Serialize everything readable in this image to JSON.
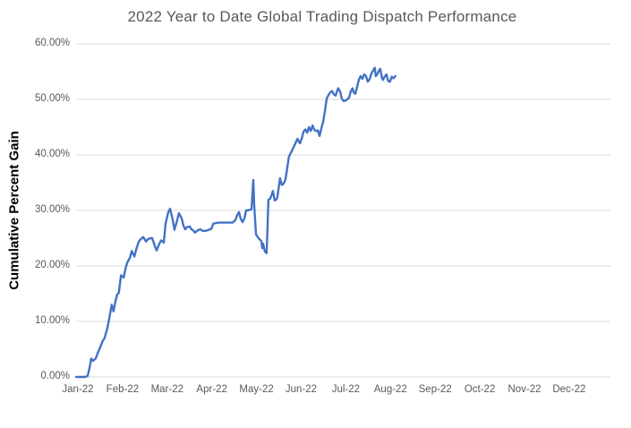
{
  "colors": {
    "line": "#4472C4",
    "gridline": "#D9D9D9",
    "title_text": "#595959",
    "tick_text": "#595959",
    "y_axis_title_text": "#000000",
    "background": "#FFFFFF"
  },
  "chart_data": {
    "type": "line",
    "title": "2022 Year to Date Global Trading Dispatch Performance",
    "xlabel": "",
    "ylabel": "Cumulative Percent Gain",
    "ylim": [
      0,
      60
    ],
    "xlim_months": [
      0,
      12
    ],
    "grid": "horizontal-only",
    "legend": "none",
    "y_ticks": [
      {
        "label": "60.00%",
        "value": 60
      },
      {
        "label": "50.00%",
        "value": 50
      },
      {
        "label": "40.00%",
        "value": 40
      },
      {
        "label": "30.00%",
        "value": 30
      },
      {
        "label": "20.00%",
        "value": 20
      },
      {
        "label": "10.00%",
        "value": 10
      },
      {
        "label": "0.00%",
        "value": 0
      }
    ],
    "x_tick_labels": [
      "Jan-22",
      "Feb-22",
      "Mar-22",
      "Apr-22",
      "May-22",
      "Jun-22",
      "Jul-22",
      "Aug-22",
      "Sep-22",
      "Oct-22",
      "Nov-22",
      "Dec-22"
    ],
    "series": [
      {
        "name": "Cumulative Percent Gain",
        "color": "#4472C4",
        "x_unit": "months since 2022-01-01 (decimal)",
        "y_unit": "percent",
        "points": [
          [
            0,
            0
          ],
          [
            0.1,
            0
          ],
          [
            0.2,
            0
          ],
          [
            0.26,
            0.2
          ],
          [
            0.3,
            1.5
          ],
          [
            0.34,
            3.3
          ],
          [
            0.38,
            2.9
          ],
          [
            0.44,
            3.3
          ],
          [
            0.48,
            4.2
          ],
          [
            0.54,
            5.3
          ],
          [
            0.6,
            6.5
          ],
          [
            0.64,
            7
          ],
          [
            0.7,
            8.7
          ],
          [
            0.74,
            10.3
          ],
          [
            0.8,
            13
          ],
          [
            0.84,
            11.8
          ],
          [
            0.88,
            13.5
          ],
          [
            0.92,
            14.8
          ],
          [
            0.96,
            15.2
          ],
          [
            1.01,
            18.3
          ],
          [
            1.07,
            17.9
          ],
          [
            1.11,
            19.5
          ],
          [
            1.15,
            20.6
          ],
          [
            1.21,
            21.5
          ],
          [
            1.25,
            22.7
          ],
          [
            1.31,
            21.7
          ],
          [
            1.35,
            23
          ],
          [
            1.41,
            24.4
          ],
          [
            1.45,
            24.8
          ],
          [
            1.51,
            25.2
          ],
          [
            1.57,
            24.4
          ],
          [
            1.61,
            24.8
          ],
          [
            1.67,
            25
          ],
          [
            1.71,
            25
          ],
          [
            1.77,
            23.5
          ],
          [
            1.81,
            22.8
          ],
          [
            1.87,
            24
          ],
          [
            1.91,
            24.6
          ],
          [
            1.97,
            24.2
          ],
          [
            2.01,
            27.6
          ],
          [
            2.07,
            29.7
          ],
          [
            2.11,
            30.3
          ],
          [
            2.17,
            28.3
          ],
          [
            2.21,
            26.5
          ],
          [
            2.27,
            28.2
          ],
          [
            2.31,
            29.5
          ],
          [
            2.37,
            28.6
          ],
          [
            2.41,
            27.3
          ],
          [
            2.45,
            26.6
          ],
          [
            2.49,
            27
          ],
          [
            2.55,
            27.1
          ],
          [
            2.59,
            26.6
          ],
          [
            2.63,
            26.4
          ],
          [
            2.67,
            26
          ],
          [
            2.73,
            26.4
          ],
          [
            2.79,
            26.6
          ],
          [
            2.85,
            26.3
          ],
          [
            2.91,
            26.3
          ],
          [
            2.97,
            26.5
          ],
          [
            3.04,
            26.7
          ],
          [
            3.08,
            27.6
          ],
          [
            3.12,
            27.7
          ],
          [
            3.22,
            27.8
          ],
          [
            3.32,
            27.8
          ],
          [
            3.42,
            27.8
          ],
          [
            3.52,
            27.8
          ],
          [
            3.58,
            28.3
          ],
          [
            3.62,
            29.2
          ],
          [
            3.66,
            29.7
          ],
          [
            3.7,
            28.4
          ],
          [
            3.74,
            27.9
          ],
          [
            3.78,
            28.6
          ],
          [
            3.82,
            30
          ],
          [
            3.86,
            30
          ],
          [
            3.9,
            30.1
          ],
          [
            3.94,
            30.2
          ],
          [
            3.98,
            35.5
          ],
          [
            4,
            31
          ],
          [
            4.04,
            25.7
          ],
          [
            4.08,
            25.2
          ],
          [
            4.12,
            24.8
          ],
          [
            4.16,
            24.5
          ],
          [
            4.18,
            23.2
          ],
          [
            4.2,
            24
          ],
          [
            4.24,
            22.6
          ],
          [
            4.28,
            22.3
          ],
          [
            4.3,
            27
          ],
          [
            4.32,
            31.9
          ],
          [
            4.36,
            32.1
          ],
          [
            4.4,
            33
          ],
          [
            4.42,
            33.5
          ],
          [
            4.46,
            31.8
          ],
          [
            4.5,
            32
          ],
          [
            4.52,
            32.4
          ],
          [
            4.58,
            35.8
          ],
          [
            4.62,
            34.6
          ],
          [
            4.66,
            34.8
          ],
          [
            4.7,
            35.5
          ],
          [
            4.74,
            37.5
          ],
          [
            4.78,
            39.7
          ],
          [
            4.82,
            40.3
          ],
          [
            4.88,
            41.3
          ],
          [
            4.92,
            42
          ],
          [
            4.97,
            42.9
          ],
          [
            5.01,
            42.3
          ],
          [
            5.03,
            42.1
          ],
          [
            5.07,
            43
          ],
          [
            5.11,
            44.2
          ],
          [
            5.15,
            44.6
          ],
          [
            5.19,
            44
          ],
          [
            5.23,
            45
          ],
          [
            5.27,
            44.3
          ],
          [
            5.31,
            45.3
          ],
          [
            5.35,
            44.5
          ],
          [
            5.39,
            44.3
          ],
          [
            5.43,
            44.4
          ],
          [
            5.47,
            43.4
          ],
          [
            5.51,
            44.8
          ],
          [
            5.55,
            46
          ],
          [
            5.59,
            48
          ],
          [
            5.63,
            50.2
          ],
          [
            5.67,
            50.8
          ],
          [
            5.71,
            51.3
          ],
          [
            5.75,
            51.5
          ],
          [
            5.79,
            50.9
          ],
          [
            5.83,
            50.7
          ],
          [
            5.87,
            51.7
          ],
          [
            5.89,
            52
          ],
          [
            5.93,
            51.4
          ],
          [
            5.97,
            50.1
          ],
          [
            6.01,
            49.7
          ],
          [
            6.05,
            49.8
          ],
          [
            6.09,
            50
          ],
          [
            6.13,
            50.3
          ],
          [
            6.17,
            51.5
          ],
          [
            6.21,
            52
          ],
          [
            6.23,
            51.3
          ],
          [
            6.27,
            51
          ],
          [
            6.31,
            52.2
          ],
          [
            6.35,
            53.5
          ],
          [
            6.39,
            54.2
          ],
          [
            6.43,
            53.7
          ],
          [
            6.47,
            54.5
          ],
          [
            6.51,
            54.2
          ],
          [
            6.55,
            53.2
          ],
          [
            6.59,
            53.6
          ],
          [
            6.63,
            54.6
          ],
          [
            6.67,
            55.2
          ],
          [
            6.71,
            55.7
          ],
          [
            6.73,
            54.2
          ],
          [
            6.77,
            54.6
          ],
          [
            6.81,
            55.3
          ],
          [
            6.83,
            55.5
          ],
          [
            6.87,
            53.9
          ],
          [
            6.89,
            53.5
          ],
          [
            6.93,
            54.1
          ],
          [
            6.97,
            54.5
          ],
          [
            7.01,
            53.3
          ],
          [
            7.05,
            53.2
          ],
          [
            7.09,
            54.1
          ],
          [
            7.13,
            53.8
          ],
          [
            7.17,
            54.2
          ]
        ]
      }
    ]
  }
}
